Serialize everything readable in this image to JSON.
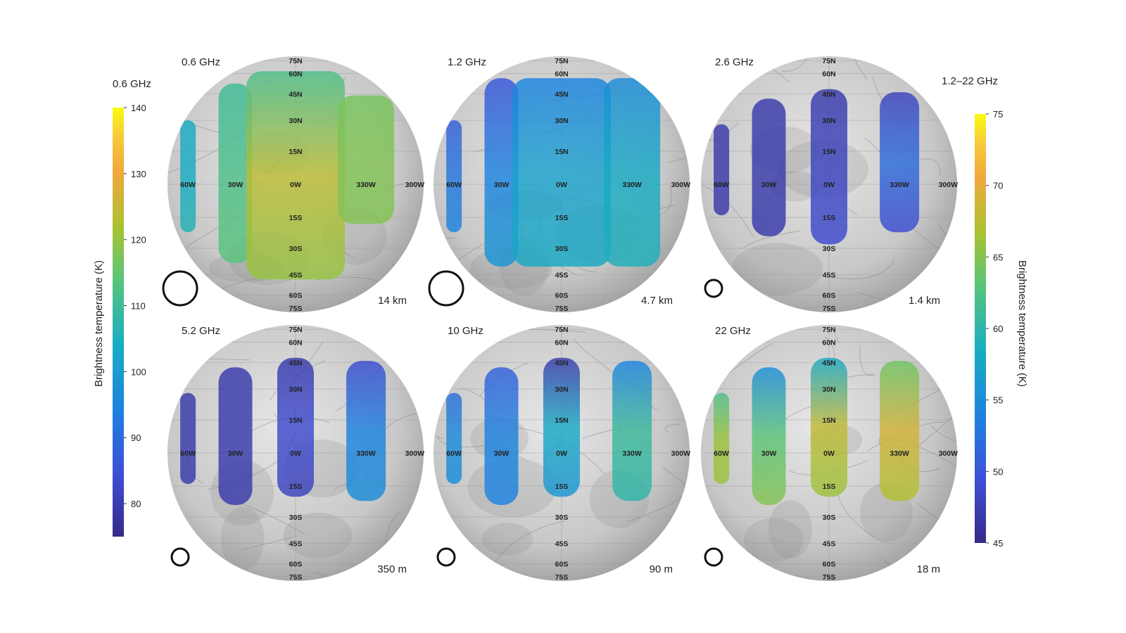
{
  "colorbar_left": {
    "title": "0.6 GHz",
    "axis_label": "Brightness temperature (K)",
    "ticks": [
      "140",
      "130",
      "120",
      "110",
      "100",
      "90",
      "80"
    ],
    "range": [
      75,
      140
    ]
  },
  "colorbar_right": {
    "title": "1.2–22 GHz",
    "axis_label": "Brightness temperature (K)",
    "ticks": [
      "75",
      "70",
      "65",
      "60",
      "55",
      "50",
      "45"
    ],
    "range": [
      45,
      75
    ]
  },
  "latitude_labels": [
    "75N",
    "60N",
    "45N",
    "30N",
    "15N",
    "0W",
    "15S",
    "30S",
    "45S",
    "60S",
    "75S"
  ],
  "longitude_labels": [
    "60W",
    "30W",
    "330W",
    "300W"
  ],
  "panels": [
    {
      "frequency": "0.6 GHz",
      "scale": "14 km",
      "beam": "large",
      "strips": [
        {
          "lon_deg": 60,
          "lat_top": 30,
          "lat_bottom": -22,
          "tb": [
            104,
            104,
            106
          ],
          "colormap": "left"
        },
        {
          "lon_deg": 30,
          "lat_top": 52,
          "lat_bottom": -38,
          "tb": [
            110,
            112,
            114
          ],
          "colormap": "left"
        },
        {
          "lon_deg": 0,
          "lat_top": 62,
          "lat_bottom": -48,
          "tb": [
            112,
            124,
            120
          ],
          "colormap": "left"
        },
        {
          "lon_deg": 330,
          "lat_top": 44,
          "lat_bottom": -18,
          "tb": [
            117,
            118,
            118
          ],
          "colormap": "left"
        }
      ]
    },
    {
      "frequency": "1.2 GHz",
      "scale": "4.7 km",
      "beam": "large",
      "strips": [
        {
          "lon_deg": 60,
          "lat_top": 30,
          "lat_bottom": -22,
          "tb": [
            51,
            53,
            54
          ],
          "colormap": "right"
        },
        {
          "lon_deg": 30,
          "lat_top": 56,
          "lat_bottom": -40,
          "tb": [
            50,
            54,
            56
          ],
          "colormap": "right"
        },
        {
          "lon_deg": 0,
          "lat_top": 56,
          "lat_bottom": -40,
          "tb": [
            54,
            57,
            58
          ],
          "colormap": "right"
        },
        {
          "lon_deg": 330,
          "lat_top": 56,
          "lat_bottom": -40,
          "tb": [
            55,
            58,
            59
          ],
          "colormap": "right"
        }
      ]
    },
    {
      "frequency": "2.6 GHz",
      "scale": "1.4 km",
      "beam": "small",
      "strips": [
        {
          "lon_deg": 60,
          "lat_top": 28,
          "lat_bottom": -14,
          "tb": [
            47,
            47,
            47
          ],
          "colormap": "right"
        },
        {
          "lon_deg": 30,
          "lat_top": 42,
          "lat_bottom": -24,
          "tb": [
            47,
            47,
            47
          ],
          "colormap": "right"
        },
        {
          "lon_deg": 0,
          "lat_top": 48,
          "lat_bottom": -28,
          "tb": [
            47,
            48,
            49
          ],
          "colormap": "right"
        },
        {
          "lon_deg": 330,
          "lat_top": 46,
          "lat_bottom": -22,
          "tb": [
            48,
            52,
            49
          ],
          "colormap": "right"
        }
      ]
    },
    {
      "frequency": "5.2 GHz",
      "scale": "350 m",
      "beam": "small",
      "strips": [
        {
          "lon_deg": 60,
          "lat_top": 28,
          "lat_bottom": -14,
          "tb": [
            47,
            47,
            47
          ],
          "colormap": "right"
        },
        {
          "lon_deg": 30,
          "lat_top": 42,
          "lat_bottom": -24,
          "tb": [
            47,
            47,
            47
          ],
          "colormap": "right"
        },
        {
          "lon_deg": 0,
          "lat_top": 48,
          "lat_bottom": -20,
          "tb": [
            47,
            49,
            48
          ],
          "colormap": "right"
        },
        {
          "lon_deg": 330,
          "lat_top": 46,
          "lat_bottom": -22,
          "tb": [
            49,
            54,
            55
          ],
          "colormap": "right"
        }
      ]
    },
    {
      "frequency": "10 GHz",
      "scale": "90 m",
      "beam": "small",
      "strips": [
        {
          "lon_deg": 60,
          "lat_top": 28,
          "lat_bottom": -14,
          "tb": [
            52,
            55,
            55
          ],
          "colormap": "right"
        },
        {
          "lon_deg": 30,
          "lat_top": 42,
          "lat_bottom": -24,
          "tb": [
            51,
            54,
            54
          ],
          "colormap": "right"
        },
        {
          "lon_deg": 0,
          "lat_top": 48,
          "lat_bottom": -20,
          "tb": [
            47,
            58,
            56
          ],
          "colormap": "right"
        },
        {
          "lon_deg": 330,
          "lat_top": 46,
          "lat_bottom": -22,
          "tb": [
            54,
            61,
            60
          ],
          "colormap": "right"
        }
      ]
    },
    {
      "frequency": "22 GHz",
      "scale": "18 m",
      "beam": "small",
      "strips": [
        {
          "lon_deg": 60,
          "lat_top": 28,
          "lat_bottom": -14,
          "tb": [
            62,
            66,
            66
          ],
          "colormap": "right"
        },
        {
          "lon_deg": 30,
          "lat_top": 42,
          "lat_bottom": -24,
          "tb": [
            55,
            63,
            65
          ],
          "colormap": "right"
        },
        {
          "lon_deg": 0,
          "lat_top": 48,
          "lat_bottom": -20,
          "tb": [
            58,
            68,
            66
          ],
          "colormap": "right"
        },
        {
          "lon_deg": 330,
          "lat_top": 46,
          "lat_bottom": -22,
          "tb": [
            64,
            69,
            67
          ],
          "colormap": "right"
        }
      ]
    }
  ]
}
